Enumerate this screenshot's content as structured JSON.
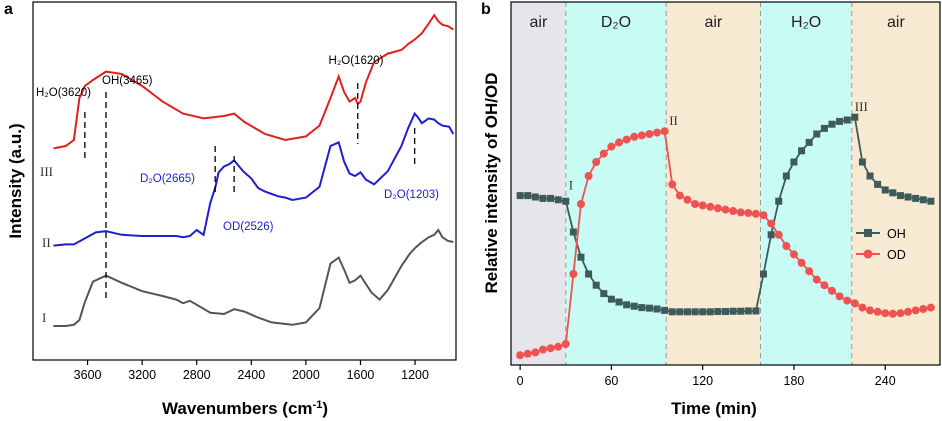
{
  "chart_data": [
    {
      "type": "line",
      "panel_label": "a",
      "xlabel_main": "Wavenumbers (cm",
      "xlabel_sup": "-1",
      "xlabel_end": ")",
      "ylabel": "Intensity (a.u.)",
      "xlim": [
        4000,
        900
      ],
      "x_ticks": [
        "3600",
        "3200",
        "2800",
        "2400",
        "2000",
        "1600",
        "1200"
      ],
      "x_tick_values": [
        3600,
        3200,
        2800,
        2400,
        2000,
        1600,
        1200
      ],
      "series": [
        {
          "name": "I",
          "label": "I",
          "color": "#555555",
          "x": [
            3850,
            3760,
            3700,
            3660,
            3620,
            3560,
            3465,
            3350,
            3200,
            3050,
            2950,
            2900,
            2850,
            2700,
            2600,
            2526,
            2450,
            2350,
            2250,
            2100,
            2000,
            1900,
            1820,
            1760,
            1720,
            1680,
            1640,
            1600,
            1560,
            1520,
            1460,
            1400,
            1300,
            1240,
            1200,
            1160,
            1100,
            1060,
            1030,
            1000,
            960,
            920
          ],
          "y": [
            0.05,
            0.05,
            0.06,
            0.1,
            0.25,
            0.42,
            0.47,
            0.41,
            0.34,
            0.3,
            0.27,
            0.24,
            0.26,
            0.16,
            0.15,
            0.19,
            0.17,
            0.12,
            0.08,
            0.06,
            0.08,
            0.2,
            0.57,
            0.62,
            0.52,
            0.41,
            0.43,
            0.47,
            0.4,
            0.33,
            0.27,
            0.35,
            0.55,
            0.65,
            0.7,
            0.74,
            0.79,
            0.81,
            0.85,
            0.79,
            0.76,
            0.75
          ]
        },
        {
          "name": "II",
          "label": "II",
          "color": "#1f1fd1",
          "x": [
            3850,
            3760,
            3700,
            3620,
            3540,
            3465,
            3350,
            3200,
            3050,
            2950,
            2900,
            2850,
            2800,
            2750,
            2700,
            2665,
            2640,
            2600,
            2560,
            2526,
            2460,
            2400,
            2350,
            2300,
            2250,
            2200,
            2150,
            2100,
            2000,
            1900,
            1820,
            1760,
            1720,
            1680,
            1640,
            1600,
            1560,
            1500,
            1400,
            1300,
            1250,
            1203,
            1180,
            1150,
            1100,
            1060,
            1030,
            1000,
            950,
            920
          ],
          "y": [
            0.72,
            0.73,
            0.73,
            0.78,
            0.83,
            0.84,
            0.81,
            0.8,
            0.8,
            0.8,
            0.79,
            0.8,
            0.85,
            0.81,
            1.08,
            1.2,
            1.33,
            1.38,
            1.4,
            1.43,
            1.34,
            1.28,
            1.2,
            1.17,
            1.15,
            1.13,
            1.12,
            1.1,
            1.12,
            1.21,
            1.55,
            1.58,
            1.42,
            1.32,
            1.3,
            1.33,
            1.27,
            1.23,
            1.34,
            1.55,
            1.7,
            1.82,
            1.79,
            1.74,
            1.78,
            1.77,
            1.74,
            1.72,
            1.71,
            1.65
          ]
        },
        {
          "name": "III",
          "label": "III",
          "color": "#e02020",
          "x": [
            3850,
            3760,
            3700,
            3660,
            3620,
            3560,
            3465,
            3350,
            3200,
            3050,
            2900,
            2750,
            2600,
            2526,
            2450,
            2300,
            2150,
            2000,
            1900,
            1820,
            1760,
            1720,
            1680,
            1640,
            1620,
            1600,
            1560,
            1500,
            1400,
            1300,
            1250,
            1200,
            1150,
            1100,
            1060,
            1030,
            1000,
            960,
            920
          ],
          "y": [
            1.53,
            1.55,
            1.6,
            1.95,
            2.05,
            2.1,
            2.17,
            2.15,
            2.05,
            1.92,
            1.82,
            1.78,
            1.8,
            1.82,
            1.75,
            1.65,
            1.6,
            1.63,
            1.72,
            1.95,
            2.13,
            2.0,
            1.92,
            1.95,
            1.9,
            1.92,
            2.08,
            2.25,
            2.32,
            2.35,
            2.4,
            2.44,
            2.49,
            2.57,
            2.64,
            2.59,
            2.56,
            2.55,
            2.52
          ]
        }
      ],
      "markers": [
        {
          "label": "H₂O(3620)",
          "x": 3620,
          "color": "#000000"
        },
        {
          "label": "OH(3465)",
          "x": 3465,
          "color": "#000000"
        },
        {
          "label": "H₂O(1620)",
          "x": 1620,
          "color": "#000000"
        },
        {
          "label": "D₂O(2665)",
          "x": 2665,
          "color": "#1f1fd1"
        },
        {
          "label": "OD(2526)",
          "x": 2526,
          "color": "#1f1fd1"
        },
        {
          "label": "D₂O(1203)",
          "x": 1203,
          "color": "#1f1fd1"
        }
      ]
    },
    {
      "type": "line",
      "panel_label": "b",
      "xlabel": "Time (min)",
      "ylabel": "Relative intensity of OH/OD",
      "xlim": [
        -6,
        276
      ],
      "x_ticks": [
        "0",
        "60",
        "120",
        "180",
        "240"
      ],
      "x_tick_values": [
        0,
        60,
        120,
        180,
        240
      ],
      "regions": [
        {
          "label": "air",
          "start": -6,
          "end": 30,
          "color": "#e6e6ea"
        },
        {
          "label": "D₂O",
          "start": 30,
          "end": 96,
          "color": "#c8fbf4"
        },
        {
          "label": "air",
          "start": 96,
          "end": 158,
          "color": "#f6ead2"
        },
        {
          "label": "H₂O",
          "start": 158,
          "end": 218,
          "color": "#c8fbf4"
        },
        {
          "label": "air",
          "start": 218,
          "end": 276,
          "color": "#f6ead2"
        }
      ],
      "stage_labels": [
        {
          "label": "I",
          "t": 32,
          "v": 0.58
        },
        {
          "label": "II",
          "t": 98,
          "v": 0.81
        },
        {
          "label": "III",
          "t": 220,
          "v": 0.86
        }
      ],
      "series": [
        {
          "name": "OH",
          "label": "OH",
          "color": "#3e5a5a",
          "marker": "square",
          "x": [
            0,
            5,
            10,
            15,
            20,
            25,
            30,
            35,
            40,
            45,
            50,
            55,
            60,
            65,
            70,
            75,
            80,
            85,
            90,
            95,
            100,
            105,
            110,
            115,
            120,
            125,
            130,
            135,
            140,
            145,
            150,
            155,
            160,
            165,
            170,
            175,
            180,
            185,
            190,
            195,
            200,
            205,
            210,
            215,
            220,
            225,
            230,
            235,
            240,
            245,
            250,
            255,
            260,
            265,
            270
          ],
          "y": [
            0.58,
            0.58,
            0.575,
            0.57,
            0.57,
            0.565,
            0.56,
            0.45,
            0.36,
            0.3,
            0.26,
            0.23,
            0.21,
            0.2,
            0.19,
            0.185,
            0.18,
            0.178,
            0.175,
            0.17,
            0.165,
            0.165,
            0.165,
            0.165,
            0.165,
            0.165,
            0.166,
            0.166,
            0.167,
            0.167,
            0.168,
            0.168,
            0.3,
            0.44,
            0.56,
            0.65,
            0.7,
            0.74,
            0.77,
            0.8,
            0.82,
            0.835,
            0.845,
            0.85,
            0.86,
            0.7,
            0.65,
            0.62,
            0.6,
            0.59,
            0.58,
            0.575,
            0.57,
            0.565,
            0.56
          ]
        },
        {
          "name": "OD",
          "label": "OD",
          "color": "#ef5250",
          "marker": "circle",
          "x": [
            0,
            5,
            10,
            15,
            20,
            25,
            30,
            35,
            40,
            45,
            50,
            55,
            60,
            65,
            70,
            75,
            80,
            85,
            90,
            95,
            100,
            105,
            110,
            115,
            120,
            125,
            130,
            135,
            140,
            145,
            150,
            155,
            160,
            165,
            170,
            175,
            180,
            185,
            190,
            195,
            200,
            205,
            210,
            215,
            220,
            225,
            230,
            235,
            240,
            245,
            250,
            255,
            260,
            265,
            270
          ],
          "y": [
            0.01,
            0.015,
            0.02,
            0.03,
            0.035,
            0.04,
            0.05,
            0.3,
            0.55,
            0.65,
            0.7,
            0.73,
            0.755,
            0.77,
            0.78,
            0.79,
            0.795,
            0.8,
            0.805,
            0.81,
            0.62,
            0.58,
            0.565,
            0.55,
            0.545,
            0.54,
            0.535,
            0.53,
            0.525,
            0.52,
            0.518,
            0.515,
            0.51,
            0.48,
            0.44,
            0.4,
            0.37,
            0.34,
            0.31,
            0.28,
            0.26,
            0.24,
            0.22,
            0.205,
            0.195,
            0.18,
            0.17,
            0.165,
            0.16,
            0.158,
            0.16,
            0.165,
            0.17,
            0.175,
            0.18
          ]
        }
      ],
      "ylim": [
        0,
        1
      ],
      "legend": "center-right"
    }
  ]
}
